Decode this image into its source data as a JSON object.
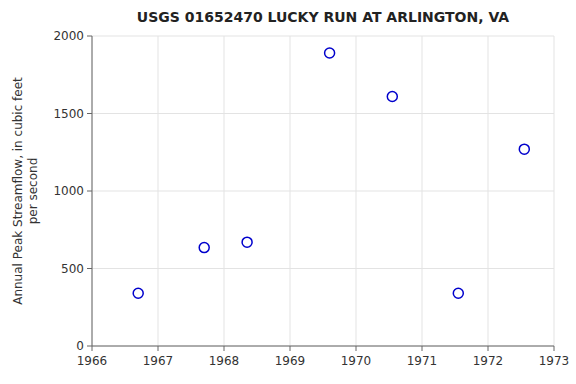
{
  "chart_data": {
    "type": "scatter",
    "title": "USGS 01652470 LUCKY RUN AT ARLINGTON, VA",
    "y_label": "Annual Peak Streamflow, in cubic feet\nper second",
    "x": [
      1966.7,
      1967.7,
      1968.35,
      1969.6,
      1970.55,
      1971.55,
      1972.55
    ],
    "values": [
      340,
      635,
      670,
      1890,
      1610,
      340,
      1270
    ],
    "color": "#0000cc",
    "marker": "circle",
    "xlim": [
      1966,
      1973
    ],
    "ylim": [
      0,
      2000
    ],
    "xticks": [
      1966,
      1967,
      1968,
      1969,
      1970,
      1971,
      1972,
      1973
    ],
    "yticks": [
      0,
      500,
      1000,
      1500,
      2000
    ],
    "grid": true
  }
}
